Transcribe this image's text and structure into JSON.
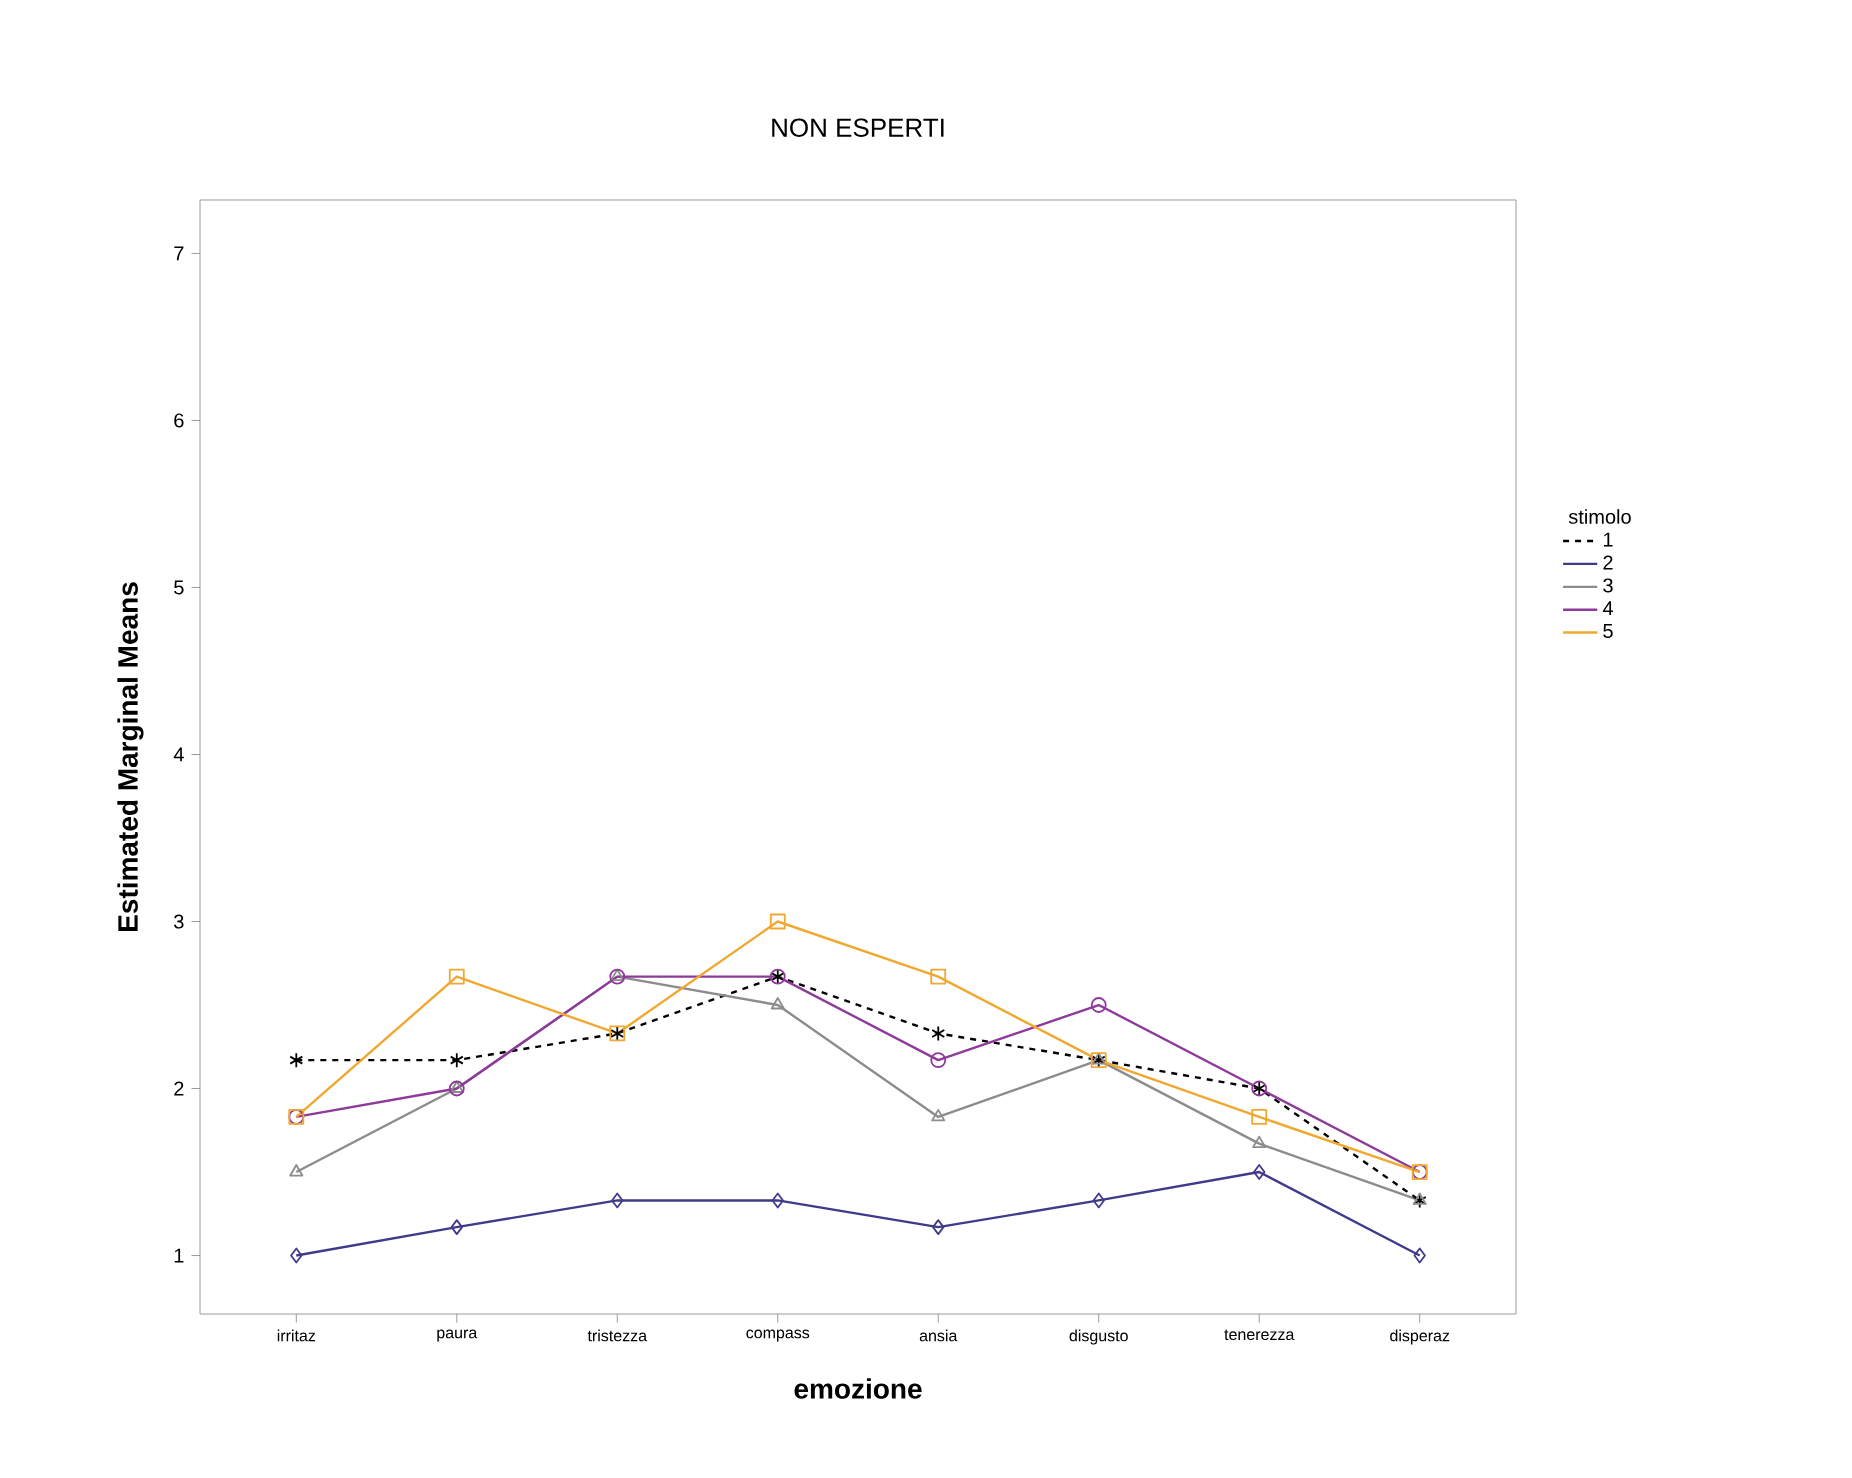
{
  "chart_data": {
    "type": "line",
    "title": "NON ESPERTI",
    "xlabel": "emozione",
    "ylabel": "Estimated Marginal Means",
    "legend_title": "stimolo",
    "categories": [
      "irritaz",
      "paura",
      "tristezza",
      "compass",
      "ansia",
      "disgusto",
      "tenerezza",
      "disperaz"
    ],
    "series": [
      {
        "name": "1",
        "color": "#000000",
        "line_style": "dashed",
        "marker": "cross",
        "values": [
          2.17,
          2.17,
          2.33,
          2.67,
          2.33,
          2.17,
          2.0,
          1.33
        ]
      },
      {
        "name": "2",
        "color": "#3f3a8a",
        "line_style": "solid",
        "marker": "diamond",
        "values": [
          1.0,
          1.17,
          1.33,
          1.33,
          1.17,
          1.33,
          1.5,
          1.0
        ]
      },
      {
        "name": "3",
        "color": "#8c8c8c",
        "line_style": "solid",
        "marker": "triangle",
        "values": [
          1.5,
          2.0,
          2.67,
          2.5,
          1.83,
          2.17,
          1.67,
          1.33
        ]
      },
      {
        "name": "4",
        "color": "#8e3a9a",
        "line_style": "solid",
        "marker": "circle",
        "values": [
          1.83,
          2.0,
          2.67,
          2.67,
          2.17,
          2.5,
          2.0,
          1.5
        ]
      },
      {
        "name": "5",
        "color": "#f0a830",
        "line_style": "solid",
        "marker": "square",
        "values": [
          1.83,
          2.67,
          2.33,
          3.0,
          2.67,
          2.17,
          1.83,
          1.5
        ]
      }
    ],
    "ylim": [
      0.65,
      7.32
    ],
    "yticks": [
      1,
      2,
      3,
      4,
      5,
      6,
      7
    ],
    "grid": false,
    "legend": "right"
  }
}
